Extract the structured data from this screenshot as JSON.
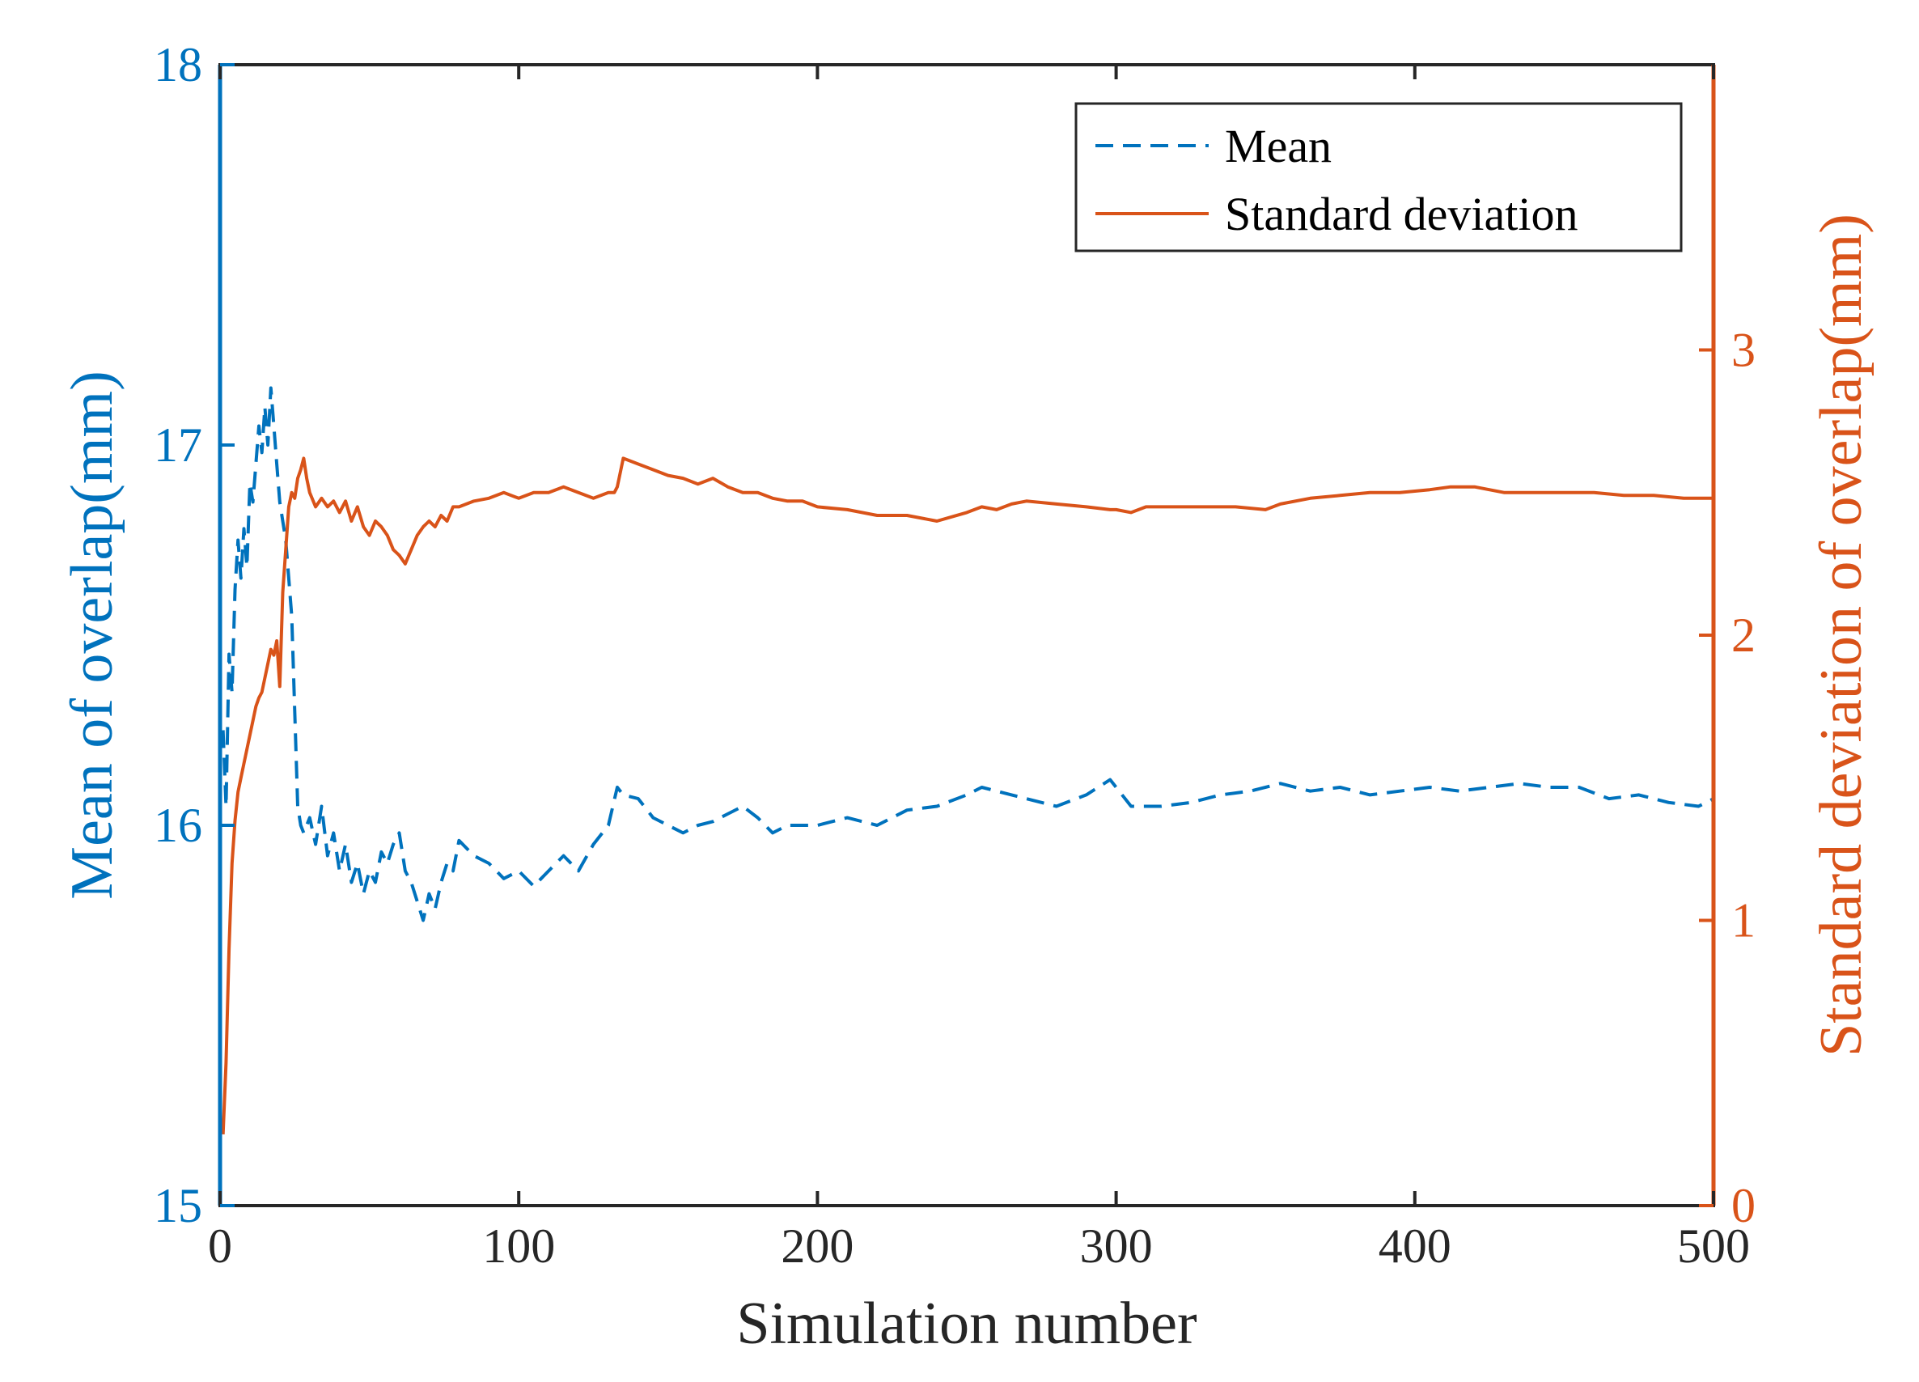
{
  "chart_data": {
    "type": "line",
    "xlabel": "Simulation number",
    "ylabel_left": "Mean of overlap(mm)",
    "ylabel_right": "Standard deviation of overlap(mm)",
    "xlim": [
      0,
      500
    ],
    "ylim_left": [
      15,
      18
    ],
    "ylim_right": [
      0,
      4
    ],
    "xticks": [
      0,
      100,
      200,
      300,
      400,
      500
    ],
    "xtick_labels": [
      "0",
      "100",
      "200",
      "300",
      "400",
      "500"
    ],
    "yticks_left": [
      15,
      16,
      17,
      18
    ],
    "ytick_labels_left": [
      "15",
      "16",
      "17",
      "18"
    ],
    "yticks_right": [
      0,
      1,
      2,
      3
    ],
    "ytick_labels_right": [
      "0",
      "1",
      "2",
      "3"
    ],
    "grid": false,
    "legend_position": "top-right",
    "legend_labels": [
      "Mean",
      "Standard deviation"
    ],
    "series": [
      {
        "name": "Mean",
        "axis": "left",
        "style": "dashed",
        "color": "#0072BD",
        "x": [
          1,
          2,
          3,
          4,
          5,
          6,
          7,
          8,
          9,
          10,
          11,
          12,
          13,
          14,
          15,
          16,
          17,
          18,
          19,
          20,
          22,
          24,
          25,
          26,
          27,
          28,
          30,
          32,
          34,
          36,
          38,
          40,
          42,
          44,
          46,
          48,
          50,
          52,
          54,
          56,
          58,
          60,
          62,
          64,
          66,
          68,
          70,
          72,
          74,
          76,
          78,
          80,
          85,
          90,
          95,
          100,
          105,
          110,
          115,
          120,
          125,
          130,
          133,
          135,
          140,
          145,
          150,
          155,
          160,
          165,
          170,
          175,
          180,
          185,
          190,
          195,
          200,
          210,
          220,
          230,
          240,
          250,
          255,
          260,
          265,
          270,
          280,
          290,
          298,
          305,
          315,
          325,
          335,
          345,
          355,
          365,
          375,
          385,
          395,
          405,
          415,
          425,
          435,
          445,
          455,
          465,
          475,
          485,
          495,
          500
        ],
        "values": [
          16.25,
          16.05,
          16.45,
          16.35,
          16.62,
          16.75,
          16.65,
          16.78,
          16.68,
          16.9,
          16.85,
          16.95,
          17.05,
          16.98,
          17.1,
          17.0,
          17.15,
          17.05,
          16.95,
          16.85,
          16.75,
          16.55,
          16.3,
          16.05,
          16.0,
          15.98,
          16.02,
          15.95,
          16.05,
          15.92,
          15.98,
          15.88,
          15.95,
          15.85,
          15.9,
          15.82,
          15.88,
          15.85,
          15.93,
          15.9,
          15.95,
          15.98,
          15.88,
          15.85,
          15.8,
          15.75,
          15.82,
          15.78,
          15.85,
          15.9,
          15.88,
          15.96,
          15.92,
          15.9,
          15.86,
          15.88,
          15.84,
          15.88,
          15.92,
          15.88,
          15.95,
          16.0,
          16.1,
          16.08,
          16.07,
          16.02,
          16.0,
          15.98,
          16.0,
          16.01,
          16.03,
          16.05,
          16.02,
          15.98,
          16.0,
          16.0,
          16.0,
          16.02,
          16.0,
          16.04,
          16.05,
          16.08,
          16.1,
          16.09,
          16.08,
          16.07,
          16.05,
          16.08,
          16.12,
          16.05,
          16.05,
          16.06,
          16.08,
          16.09,
          16.11,
          16.09,
          16.1,
          16.08,
          16.09,
          16.1,
          16.09,
          16.1,
          16.11,
          16.1,
          16.1,
          16.07,
          16.08,
          16.06,
          16.05,
          16.07
        ]
      },
      {
        "name": "Standard deviation",
        "axis": "right",
        "style": "solid",
        "color": "#D95319",
        "x": [
          1,
          2,
          3,
          4,
          5,
          6,
          7,
          8,
          9,
          10,
          11,
          12,
          13,
          14,
          15,
          16,
          17,
          18,
          19,
          20,
          21,
          22,
          23,
          24,
          25,
          26,
          27,
          28,
          29,
          30,
          32,
          34,
          36,
          38,
          40,
          42,
          44,
          46,
          48,
          50,
          52,
          54,
          56,
          58,
          60,
          62,
          64,
          66,
          68,
          70,
          72,
          74,
          76,
          78,
          80,
          85,
          90,
          95,
          100,
          105,
          110,
          115,
          120,
          125,
          130,
          132,
          133,
          135,
          140,
          145,
          150,
          155,
          160,
          165,
          170,
          175,
          180,
          185,
          190,
          195,
          200,
          210,
          220,
          230,
          240,
          250,
          255,
          260,
          265,
          270,
          280,
          290,
          298,
          300,
          305,
          310,
          320,
          330,
          340,
          350,
          355,
          365,
          375,
          385,
          395,
          405,
          412,
          420,
          430,
          440,
          450,
          460,
          470,
          480,
          490,
          500
        ],
        "values": [
          0.25,
          0.5,
          0.9,
          1.2,
          1.35,
          1.45,
          1.5,
          1.55,
          1.6,
          1.65,
          1.7,
          1.75,
          1.78,
          1.8,
          1.85,
          1.9,
          1.95,
          1.93,
          1.98,
          1.82,
          2.15,
          2.3,
          2.45,
          2.5,
          2.48,
          2.55,
          2.58,
          2.62,
          2.55,
          2.5,
          2.45,
          2.48,
          2.45,
          2.47,
          2.43,
          2.47,
          2.4,
          2.45,
          2.38,
          2.35,
          2.4,
          2.38,
          2.35,
          2.3,
          2.28,
          2.25,
          2.3,
          2.35,
          2.38,
          2.4,
          2.38,
          2.42,
          2.4,
          2.45,
          2.45,
          2.47,
          2.48,
          2.5,
          2.48,
          2.5,
          2.5,
          2.52,
          2.5,
          2.48,
          2.5,
          2.5,
          2.52,
          2.62,
          2.6,
          2.58,
          2.56,
          2.55,
          2.53,
          2.55,
          2.52,
          2.5,
          2.5,
          2.48,
          2.47,
          2.47,
          2.45,
          2.44,
          2.42,
          2.42,
          2.4,
          2.43,
          2.45,
          2.44,
          2.46,
          2.47,
          2.46,
          2.45,
          2.44,
          2.44,
          2.43,
          2.45,
          2.45,
          2.45,
          2.45,
          2.44,
          2.46,
          2.48,
          2.49,
          2.5,
          2.5,
          2.51,
          2.52,
          2.52,
          2.5,
          2.5,
          2.5,
          2.5,
          2.49,
          2.49,
          2.48,
          2.48
        ]
      }
    ]
  }
}
